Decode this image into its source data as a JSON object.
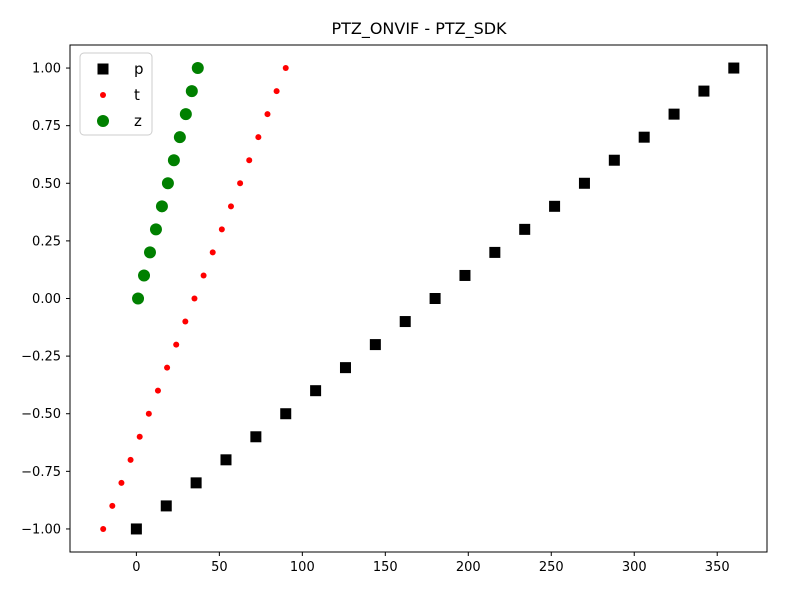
{
  "chart_data": {
    "type": "scatter",
    "title": "PTZ_ONVIF - PTZ_SDK",
    "xlabel": "",
    "ylabel": "",
    "xlim": [
      -40,
      380
    ],
    "ylim": [
      -1.1,
      1.1
    ],
    "xticks": [
      0,
      50,
      100,
      150,
      200,
      250,
      300,
      350
    ],
    "yticks": [
      -1.0,
      -0.75,
      -0.5,
      -0.25,
      0.0,
      0.25,
      0.5,
      0.75,
      1.0
    ],
    "xtick_labels": [
      "0",
      "50",
      "100",
      "150",
      "200",
      "250",
      "300",
      "350"
    ],
    "ytick_labels": [
      "−1.00",
      "−0.75",
      "−0.50",
      "−0.25",
      "0.00",
      "0.25",
      "0.50",
      "0.75",
      "1.00"
    ],
    "grid": false,
    "legend_position": "top-left",
    "series": [
      {
        "name": "p",
        "marker": "square",
        "color": "#000000",
        "x": [
          0,
          18,
          36,
          54,
          72,
          90,
          108,
          126,
          144,
          162,
          180,
          198,
          216,
          234,
          252,
          270,
          288,
          306,
          324,
          342,
          360
        ],
        "y": [
          -1.0,
          -0.9,
          -0.8,
          -0.7,
          -0.6,
          -0.5,
          -0.4,
          -0.3,
          -0.2,
          -0.1,
          0.0,
          0.1,
          0.2,
          0.3,
          0.4,
          0.5,
          0.6,
          0.7,
          0.8,
          0.9,
          1.0
        ]
      },
      {
        "name": "t",
        "marker": "small-circle",
        "color": "#ff0000",
        "x": [
          -20,
          -14.5,
          -9,
          -3.5,
          2,
          7.5,
          13,
          18.5,
          24,
          29.5,
          35,
          40.5,
          46,
          51.5,
          57,
          62.5,
          68,
          73.5,
          79,
          84.5,
          90
        ],
        "y": [
          -1.0,
          -0.9,
          -0.8,
          -0.7,
          -0.6,
          -0.5,
          -0.4,
          -0.3,
          -0.2,
          -0.1,
          0.0,
          0.1,
          0.2,
          0.3,
          0.4,
          0.5,
          0.6,
          0.7,
          0.8,
          0.9,
          1.0
        ]
      },
      {
        "name": "z",
        "marker": "circle",
        "color": "#008000",
        "x": [
          1,
          4.6,
          8.2,
          11.8,
          15.4,
          19,
          22.6,
          26.2,
          29.8,
          33.4,
          37
        ],
        "y": [
          0.0,
          0.1,
          0.2,
          0.3,
          0.4,
          0.5,
          0.6,
          0.7,
          0.8,
          0.9,
          1.0
        ]
      }
    ]
  }
}
